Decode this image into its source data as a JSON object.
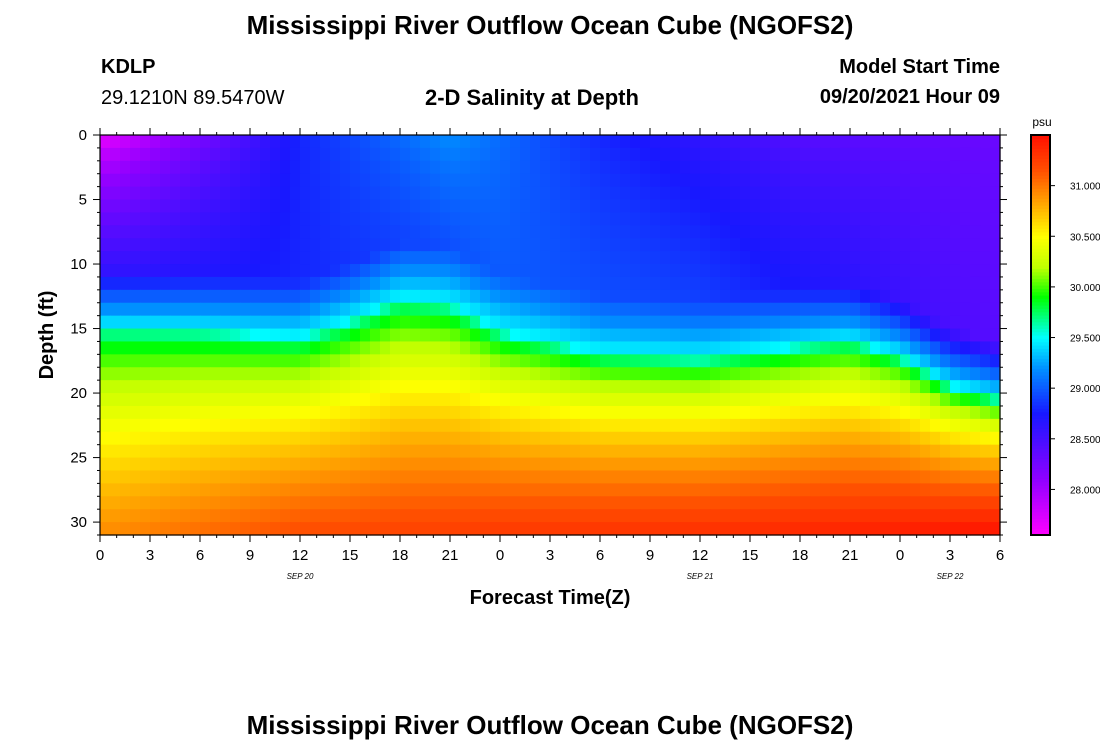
{
  "header": {
    "title": "Mississippi River Outflow Ocean Cube (NGOFS2)",
    "station_id": "KDLP",
    "coords": "29.1210N  89.5470W",
    "plot_title": "2-D Salinity at Depth",
    "model_start_label": "Model Start Time",
    "model_start_value": "09/20/2021 Hour 09"
  },
  "footer": {
    "title": "Mississippi River Outflow Ocean Cube (NGOFS2)"
  },
  "chart_data": {
    "type": "heatmap",
    "title": "2-D Salinity at Depth",
    "xlabel": "Forecast Time(Z)",
    "ylabel": "Depth (ft)",
    "x_unit": "forecast hour since 2021-09-20 00Z",
    "xlim": [
      0,
      54
    ],
    "ylim": [
      0,
      31
    ],
    "y_inverted": true,
    "x_tick_values": [
      0,
      3,
      6,
      9,
      12,
      15,
      18,
      21,
      24,
      27,
      30,
      33,
      36,
      39,
      42,
      45,
      48,
      51,
      54
    ],
    "x_tick_labels": [
      "0",
      "3",
      "6",
      "9",
      "12",
      "15",
      "18",
      "21",
      "0",
      "3",
      "6",
      "9",
      "12",
      "15",
      "18",
      "21",
      "0",
      "3",
      "6"
    ],
    "date_labels": [
      {
        "x": 12,
        "text": "SEP 20"
      },
      {
        "x": 36,
        "text": "SEP 21"
      },
      {
        "x": 51,
        "text": "SEP 22"
      }
    ],
    "y_ticks": [
      0,
      5,
      10,
      15,
      20,
      25,
      30
    ],
    "colorbar": {
      "unit": "psu",
      "min": 27.55,
      "max": 31.5,
      "ticks": [
        "28.000",
        "28.500",
        "29.000",
        "29.500",
        "30.000",
        "30.500",
        "31.000"
      ],
      "colors": [
        "#ff00ff",
        "#9000ff",
        "#1818ff",
        "#0090ff",
        "#00ffff",
        "#00ff00",
        "#c0ff00",
        "#ffff00",
        "#ffa000",
        "#ff5000",
        "#ff1000"
      ],
      "color_stops": [
        27.55,
        28.1,
        28.75,
        29.2,
        29.5,
        29.9,
        30.2,
        30.5,
        30.85,
        31.15,
        31.5
      ]
    },
    "surface_salinity": [
      {
        "x": 0,
        "value": 27.6
      },
      {
        "x": 6,
        "value": 28.2
      },
      {
        "x": 12,
        "value": 28.8
      },
      {
        "x": 21,
        "value": 29.2
      },
      {
        "x": 30,
        "value": 28.8
      },
      {
        "x": 42,
        "value": 28.4
      },
      {
        "x": 54,
        "value": 28.3
      }
    ],
    "mid_salinity": [
      {
        "x": 0,
        "value": 28.6
      },
      {
        "x": 12,
        "value": 28.8
      },
      {
        "x": 24,
        "value": 29.0
      },
      {
        "x": 36,
        "value": 28.9
      },
      {
        "x": 54,
        "value": 28.4
      }
    ],
    "halocline_depth_ft": [
      {
        "x": 0,
        "value": 15.0
      },
      {
        "x": 6,
        "value": 15.2
      },
      {
        "x": 12,
        "value": 15.8
      },
      {
        "x": 15,
        "value": 14.5
      },
      {
        "x": 18,
        "value": 12.8
      },
      {
        "x": 21,
        "value": 13.2
      },
      {
        "x": 24,
        "value": 15.3
      },
      {
        "x": 30,
        "value": 17.0
      },
      {
        "x": 36,
        "value": 17.4
      },
      {
        "x": 42,
        "value": 16.4
      },
      {
        "x": 45,
        "value": 16.0
      },
      {
        "x": 48,
        "value": 17.2
      },
      {
        "x": 51,
        "value": 19.5
      },
      {
        "x": 54,
        "value": 20.5
      }
    ],
    "bottom_salinity": [
      {
        "x": 0,
        "value": 30.9
      },
      {
        "x": 12,
        "value": 31.15
      },
      {
        "x": 24,
        "value": 31.25
      },
      {
        "x": 36,
        "value": 31.3
      },
      {
        "x": 54,
        "value": 31.45
      }
    ]
  }
}
